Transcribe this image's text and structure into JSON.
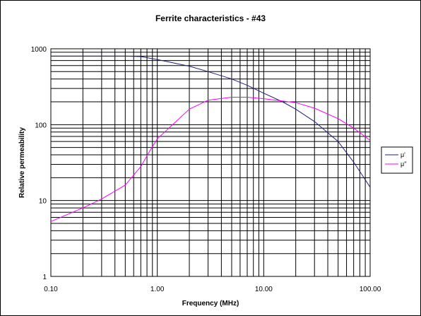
{
  "chart_data": {
    "type": "line",
    "title": "Ferrite characteristics - #43",
    "xlabel": "Frequency (MHz)",
    "ylabel": "Relative permeability",
    "x_scale": "log",
    "y_scale": "log",
    "xlim": [
      0.1,
      100
    ],
    "ylim": [
      1,
      1000
    ],
    "x_tick_labels": [
      "0.10",
      "1.00",
      "10.00",
      "100.00"
    ],
    "y_tick_labels": [
      "1",
      "10",
      "100",
      "1000"
    ],
    "grid": true,
    "legend_position": "right",
    "series": [
      {
        "name": "μ'",
        "color": "#1f1f7a",
        "x": [
          0.1,
          0.2,
          0.3,
          0.5,
          0.7,
          1.0,
          1.5,
          2.0,
          3.0,
          5.0,
          7.0,
          10.0,
          15.0,
          20.0,
          30.0,
          50.0,
          70.0,
          100.0
        ],
        "y": [
          800,
          800,
          800,
          800,
          790,
          720,
          640,
          590,
          500,
          400,
          330,
          260,
          200,
          160,
          110,
          60,
          32,
          15
        ]
      },
      {
        "name": "μ''",
        "color": "#ff00ff",
        "x": [
          0.1,
          0.2,
          0.3,
          0.5,
          0.7,
          0.85,
          1.0,
          1.5,
          2.0,
          3.0,
          5.0,
          7.0,
          10.0,
          15.0,
          20.0,
          30.0,
          50.0,
          70.0,
          100.0
        ],
        "y": [
          5.3,
          8.0,
          10.5,
          16.0,
          28.0,
          45.0,
          65.0,
          110.0,
          160.0,
          210.0,
          230.0,
          230.0,
          220.0,
          205.0,
          195.0,
          165.0,
          120.0,
          90.0,
          62.0
        ]
      }
    ]
  }
}
